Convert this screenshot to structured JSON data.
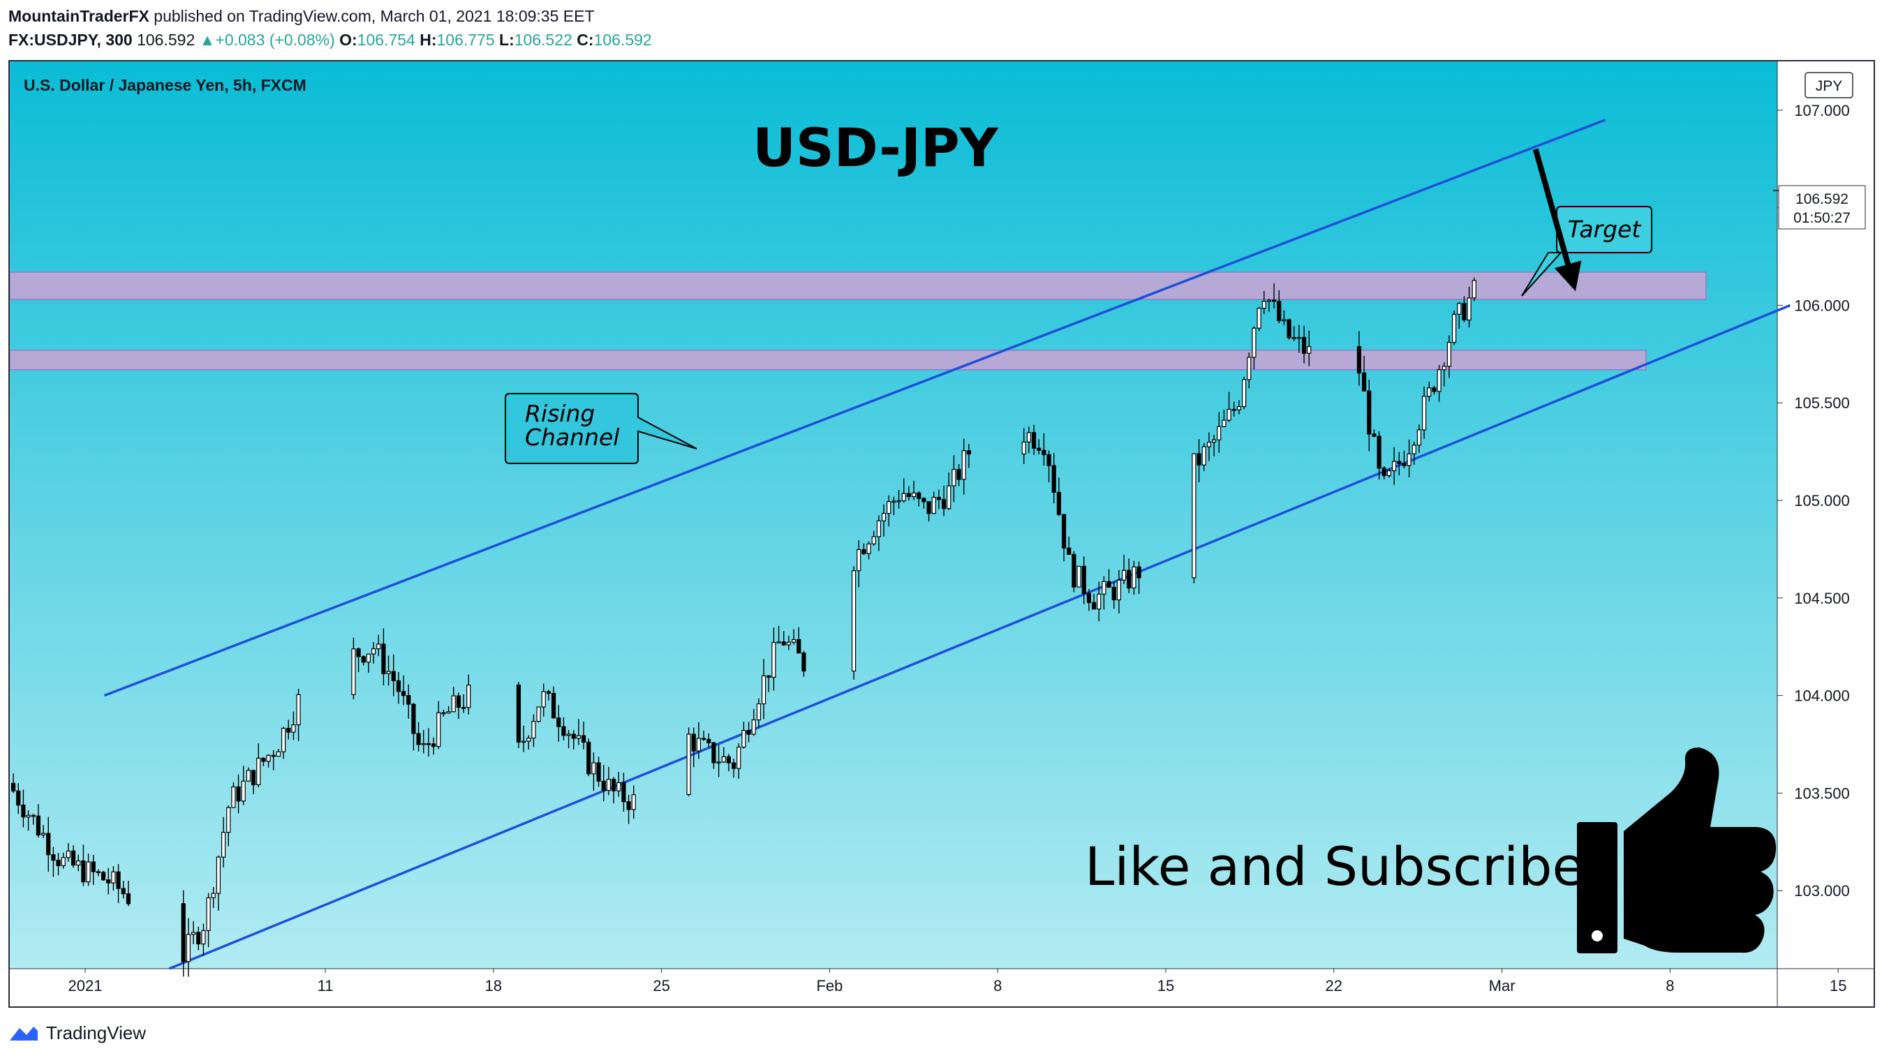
{
  "header": {
    "author": "MountainTraderFX",
    "published_text": "published on TradingView.com, March 01, 2021 18:09:35 EET",
    "symbol": "FX:USDJPY, 300",
    "last_price": "106.592",
    "change": "+0.083 (+0.08%)",
    "o_label": "O:",
    "o_value": "106.754",
    "h_label": "H:",
    "h_value": "106.775",
    "l_label": "L:",
    "l_value": "106.522",
    "c_label": "C:",
    "c_value": "106.592"
  },
  "colors": {
    "up": "#26a69a",
    "bg_top": "#0bbcd6",
    "bg_bottom": "#b2ebf2",
    "channel": "#1e4fd8",
    "zone_fill": "#b7a9d6",
    "candle": "#000000"
  },
  "icons": {
    "change_arrow": "triangle-up-icon",
    "thumbs_up": "thumbs-up-icon",
    "brand": "tradingview-logo-icon"
  },
  "footer": {
    "brand": "TradingView"
  },
  "chart_data": {
    "type": "candlestick",
    "title": "U.S. Dollar / Japanese Yen, 5h, FXCM",
    "currency": "JPY",
    "xlabel": "",
    "ylabel": "",
    "ylim": [
      102.6,
      107.25
    ],
    "y_ticks": [
      "107.000",
      "106.500",
      "106.000",
      "105.500",
      "105.000",
      "104.500",
      "104.000",
      "103.500",
      "103.000"
    ],
    "x_ticks": [
      {
        "label": "2021",
        "day": 0
      },
      {
        "label": "11",
        "day": 10
      },
      {
        "label": "18",
        "day": 17
      },
      {
        "label": "25",
        "day": 24
      },
      {
        "label": "Feb",
        "day": 31
      },
      {
        "label": "8",
        "day": 38
      },
      {
        "label": "15",
        "day": 45
      },
      {
        "label": "22",
        "day": 52
      },
      {
        "label": "Mar",
        "day": 59
      },
      {
        "label": "8",
        "day": 66
      },
      {
        "label": "15",
        "day": 73
      }
    ],
    "last_price_tag": {
      "value": "106.592",
      "countdown": "01:50:27"
    },
    "series": [
      {
        "name": "close",
        "x": [
          -3.2,
          -1,
          1,
          3,
          4,
          5,
          6,
          8,
          9,
          10,
          11,
          12,
          13,
          14,
          15,
          16,
          17,
          18,
          19,
          20,
          21,
          22,
          23,
          24,
          25,
          26,
          27,
          28,
          29,
          30,
          31,
          32,
          33,
          34,
          35,
          36,
          37,
          38,
          39,
          40,
          41,
          42,
          43,
          44,
          45,
          46,
          47,
          48,
          49,
          50,
          51,
          52,
          53,
          54,
          55,
          56,
          57,
          58,
          59,
          59.5
        ],
        "y": [
          103.55,
          103.15,
          103.05,
          102.85,
          102.65,
          102.85,
          103.45,
          103.75,
          104.0,
          103.8,
          104.2,
          104.25,
          104.05,
          103.7,
          103.9,
          104.0,
          103.75,
          103.7,
          104.0,
          103.85,
          103.65,
          103.5,
          103.45,
          103.75,
          103.8,
          103.7,
          103.65,
          104.0,
          104.3,
          104.15,
          104.55,
          104.7,
          104.9,
          105.05,
          104.95,
          105.05,
          105.3,
          105.5,
          105.35,
          105.3,
          104.65,
          104.5,
          104.55,
          104.65,
          104.9,
          105.15,
          105.3,
          105.5,
          106.1,
          105.85,
          105.75,
          105.3,
          105.7,
          105.05,
          105.25,
          105.55,
          105.9,
          106.1,
          106.2,
          106.55
        ]
      }
    ],
    "channel_upper": {
      "start": {
        "x": 0.8,
        "y": 104.0
      },
      "end": {
        "x": 63.3,
        "y": 106.95
      }
    },
    "channel_lower": {
      "start": {
        "x": 3.5,
        "y": 102.6
      },
      "end": {
        "x": 71.0,
        "y": 106.0
      }
    },
    "zones": [
      {
        "from": 106.03,
        "to": 106.17,
        "x_end": 67.5
      },
      {
        "from": 105.67,
        "to": 105.77,
        "x_end": 65.0
      }
    ],
    "annotations": {
      "symbol_title": "USD-JPY",
      "rising_channel": [
        "Rising",
        "Channel"
      ],
      "target": "Target",
      "cta": "Like and Subscribe"
    },
    "forecast_arrow": {
      "from": {
        "x": 60.4,
        "y": 106.8
      },
      "to": {
        "x": 62.0,
        "y": 106.1
      }
    }
  }
}
